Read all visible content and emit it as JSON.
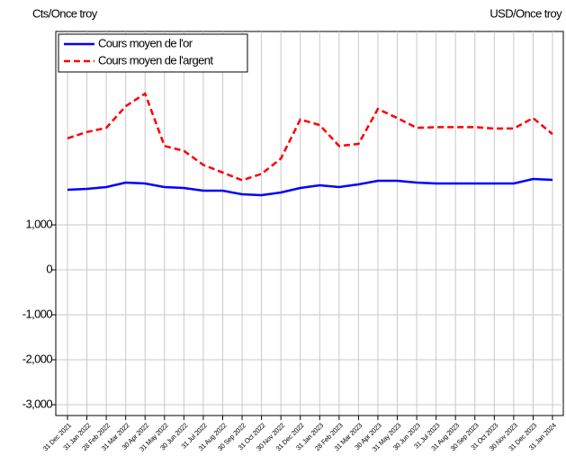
{
  "chart_data": {
    "type": "line",
    "y_label": "Cts/Once troy",
    "y2_label": "USD/Once troy",
    "categories": [
      "31 Dec 2021",
      "31 Jan 2022",
      "28 Feb 2022",
      "31 Mar 2022",
      "30 Apr 2022",
      "31 May 2022",
      "30 Jun 2022",
      "31 Jul 2022",
      "31 Aug 2022",
      "30 Sep 2022",
      "31 Oct 2022",
      "30 Nov 2022",
      "31 Dec 2022",
      "31 Jan 2023",
      "28 Feb 2023",
      "31 Mar 2023",
      "30 Apr 2023",
      "31 May 2023",
      "30 Jun 2023",
      "31 Jul 2023",
      "31 Aug 2023",
      "30 Sep 2023",
      "31 Oct 2023",
      "30 Nov 2023",
      "31 Dec 2023",
      "31 Jan 2024"
    ],
    "series": [
      {
        "name": "Cours moyen de l'or",
        "color": "#0000ff",
        "dash": false,
        "values": [
          1780,
          1800,
          1840,
          1940,
          1920,
          1840,
          1820,
          1760,
          1760,
          1680,
          1660,
          1720,
          1820,
          1880,
          1840,
          1900,
          1980,
          1980,
          1940,
          1920,
          1920,
          1920,
          1920,
          1920,
          2020,
          2000
        ]
      },
      {
        "name": "Cours moyen de l'argent",
        "color": "#ff0000",
        "dash": true,
        "axis": "y2",
        "values": [
          19.7,
          20.6,
          21.2,
          24.3,
          26.1,
          18.6,
          17.9,
          15.9,
          14.8,
          13.7,
          14.6,
          16.8,
          22.4,
          21.6,
          18.6,
          18.9,
          23.9,
          22.6,
          21.2,
          21.3,
          21.3,
          21.3,
          21.1,
          21.1,
          22.6,
          20.3
        ]
      }
    ],
    "ylim": [
      -3240,
      5300
    ],
    "yticks": [
      {
        "value": 1000,
        "label": "1,000"
      },
      0,
      {
        "value": -1000,
        "label": "-1,000"
      },
      {
        "value": -2000,
        "label": "-2,000"
      },
      {
        "value": -3000,
        "label": "-3,000"
      }
    ],
    "y2lim": [
      -20,
      35
    ],
    "grid": true,
    "legend": "top-left"
  }
}
